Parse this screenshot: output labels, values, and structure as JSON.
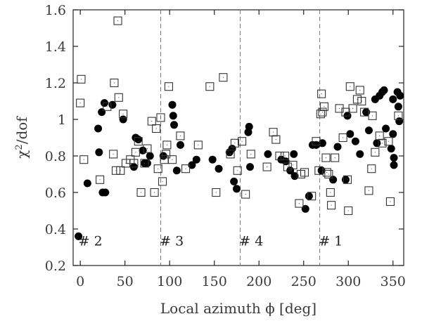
{
  "chart_data": {
    "type": "scatter",
    "xlabel": "Local azimuth ϕ  [deg]",
    "ylabel_base": "χ",
    "ylabel_sup": "2",
    "ylabel_rest": "/dof",
    "xlim": [
      -8,
      362
    ],
    "ylim": [
      0.2,
      1.6
    ],
    "x_ticks": [
      0,
      50,
      100,
      150,
      200,
      250,
      300,
      350
    ],
    "x_tick_labels": [
      "0",
      "50",
      "100",
      "150",
      "200",
      "250",
      "300",
      "350"
    ],
    "y_ticks": [
      0.2,
      0.4,
      0.6,
      0.8,
      1.0,
      1.2,
      1.4,
      1.6
    ],
    "y_tick_labels": [
      "0.2",
      "0.4",
      "0.6",
      "0.8",
      "1",
      "1.2",
      "1.4",
      "1.6"
    ],
    "grid": false,
    "vlines": [
      90,
      179,
      268
    ],
    "annotations": [
      {
        "text": "# 2",
        "x": -2,
        "y": 0.31
      },
      {
        "text": "# 3",
        "x": 89,
        "y": 0.31
      },
      {
        "text": "# 4",
        "x": 178,
        "y": 0.31
      },
      {
        "text": "# 1",
        "x": 267,
        "y": 0.31
      }
    ],
    "series": [
      {
        "marker": "filled-circle",
        "points": [
          [
            -2,
            0.36
          ],
          [
            8,
            0.65
          ],
          [
            20,
            0.95
          ],
          [
            21,
            0.82
          ],
          [
            24,
            1.04
          ],
          [
            27,
            1.09
          ],
          [
            25,
            0.6
          ],
          [
            28,
            0.6
          ],
          [
            36,
            1.08
          ],
          [
            48,
            1.0
          ],
          [
            60,
            0.74
          ],
          [
            62,
            0.9
          ],
          [
            65,
            0.89
          ],
          [
            70,
            0.83
          ],
          [
            72,
            0.76
          ],
          [
            75,
            0.76
          ],
          [
            78,
            0.8
          ],
          [
            93,
            0.8
          ],
          [
            103,
            1.08
          ],
          [
            104,
            1.02
          ],
          [
            105,
            0.97
          ],
          [
            108,
            0.72
          ],
          [
            112,
            0.86
          ],
          [
            125,
            0.75
          ],
          [
            130,
            0.78
          ],
          [
            148,
            0.78
          ],
          [
            155,
            0.73
          ],
          [
            167,
            0.82
          ],
          [
            170,
            0.84
          ],
          [
            172,
            0.66
          ],
          [
            175,
            0.62
          ],
          [
            188,
            0.93
          ],
          [
            189,
            0.96
          ],
          [
            190,
            0.74
          ],
          [
            210,
            0.81
          ],
          [
            225,
            0.78
          ],
          [
            230,
            0.77
          ],
          [
            235,
            0.72
          ],
          [
            239,
            0.81
          ],
          [
            240,
            0.69
          ],
          [
            252,
            0.51
          ],
          [
            256,
            0.58
          ],
          [
            260,
            0.86
          ],
          [
            264,
            0.86
          ],
          [
            270,
            0.72
          ],
          [
            271,
            0.87
          ],
          [
            283,
            0.67
          ],
          [
            288,
            0.85
          ],
          [
            297,
            0.67
          ],
          [
            299,
            1.02
          ],
          [
            302,
            0.92
          ],
          [
            308,
            0.88
          ],
          [
            313,
            0.81
          ],
          [
            320,
            1.04
          ],
          [
            323,
            0.94
          ],
          [
            330,
            1.11
          ],
          [
            332,
            0.87
          ],
          [
            335,
            1.13
          ],
          [
            338,
            1.15
          ],
          [
            340,
            1.16
          ],
          [
            342,
            0.95
          ],
          [
            348,
            0.84
          ],
          [
            350,
            1.11
          ],
          [
            350,
            0.92
          ],
          [
            351,
            0.79
          ],
          [
            351,
            0.75
          ],
          [
            355,
            1.15
          ],
          [
            356,
            1.07
          ],
          [
            357,
            0.99
          ],
          [
            358,
            1.13
          ]
        ]
      },
      {
        "marker": "open-square",
        "points": [
          [
            0,
            1.09
          ],
          [
            1,
            1.22
          ],
          [
            4,
            0.78
          ],
          [
            22,
            0.67
          ],
          [
            30,
            1.07
          ],
          [
            37,
            0.81
          ],
          [
            38,
            1.2
          ],
          [
            40,
            0.72
          ],
          [
            42,
            1.54
          ],
          [
            43,
            1.12
          ],
          [
            45,
            0.72
          ],
          [
            48,
            1.03
          ],
          [
            51,
            0.76
          ],
          [
            56,
            0.78
          ],
          [
            60,
            0.76
          ],
          [
            62,
            0.82
          ],
          [
            65,
            0.88
          ],
          [
            68,
            0.6
          ],
          [
            72,
            0.76
          ],
          [
            75,
            0.84
          ],
          [
            80,
            0.99
          ],
          [
            83,
            0.6
          ],
          [
            85,
            0.95
          ],
          [
            87,
            0.73
          ],
          [
            90,
            1.01
          ],
          [
            92,
            0.66
          ],
          [
            94,
            0.78
          ],
          [
            96,
            0.81
          ],
          [
            97,
            0.86
          ],
          [
            99,
            1.18
          ],
          [
            103,
            0.78
          ],
          [
            112,
            0.91
          ],
          [
            118,
            0.73
          ],
          [
            132,
            0.86
          ],
          [
            145,
            1.18
          ],
          [
            152,
            0.6
          ],
          [
            160,
            1.23
          ],
          [
            168,
            0.81
          ],
          [
            173,
            0.87
          ],
          [
            176,
            0.72
          ],
          [
            181,
            0.88
          ],
          [
            185,
            0.59
          ],
          [
            191,
            0.81
          ],
          [
            209,
            0.74
          ],
          [
            216,
            0.93
          ],
          [
            219,
            0.89
          ],
          [
            223,
            0.8
          ],
          [
            229,
            0.8
          ],
          [
            232,
            0.74
          ],
          [
            238,
            0.75
          ],
          [
            245,
            0.54
          ],
          [
            247,
            0.7
          ],
          [
            251,
            0.71
          ],
          [
            259,
            0.58
          ],
          [
            264,
            0.88
          ],
          [
            267,
            0.72
          ],
          [
            269,
            1.03
          ],
          [
            270,
            1.14
          ],
          [
            271,
            1.04
          ],
          [
            273,
            1.07
          ],
          [
            275,
            0.79
          ],
          [
            276,
            0.71
          ],
          [
            278,
            0.7
          ],
          [
            280,
            0.6
          ],
          [
            281,
            0.53
          ],
          [
            285,
            0.79
          ],
          [
            290,
            1.06
          ],
          [
            294,
            0.9
          ],
          [
            297,
            1.04
          ],
          [
            299,
            0.67
          ],
          [
            300,
            0.5
          ],
          [
            302,
            1.18
          ],
          [
            305,
            1.06
          ],
          [
            310,
            1.11
          ],
          [
            313,
            1.16
          ],
          [
            315,
            1.1
          ],
          [
            318,
            1.04
          ],
          [
            323,
            0.61
          ],
          [
            326,
            0.73
          ],
          [
            327,
            1.02
          ],
          [
            330,
            0.82
          ],
          [
            335,
            0.91
          ],
          [
            338,
            0.87
          ],
          [
            345,
            0.88
          ],
          [
            347,
            0.55
          ],
          [
            356,
            1.02
          ]
        ]
      }
    ]
  }
}
